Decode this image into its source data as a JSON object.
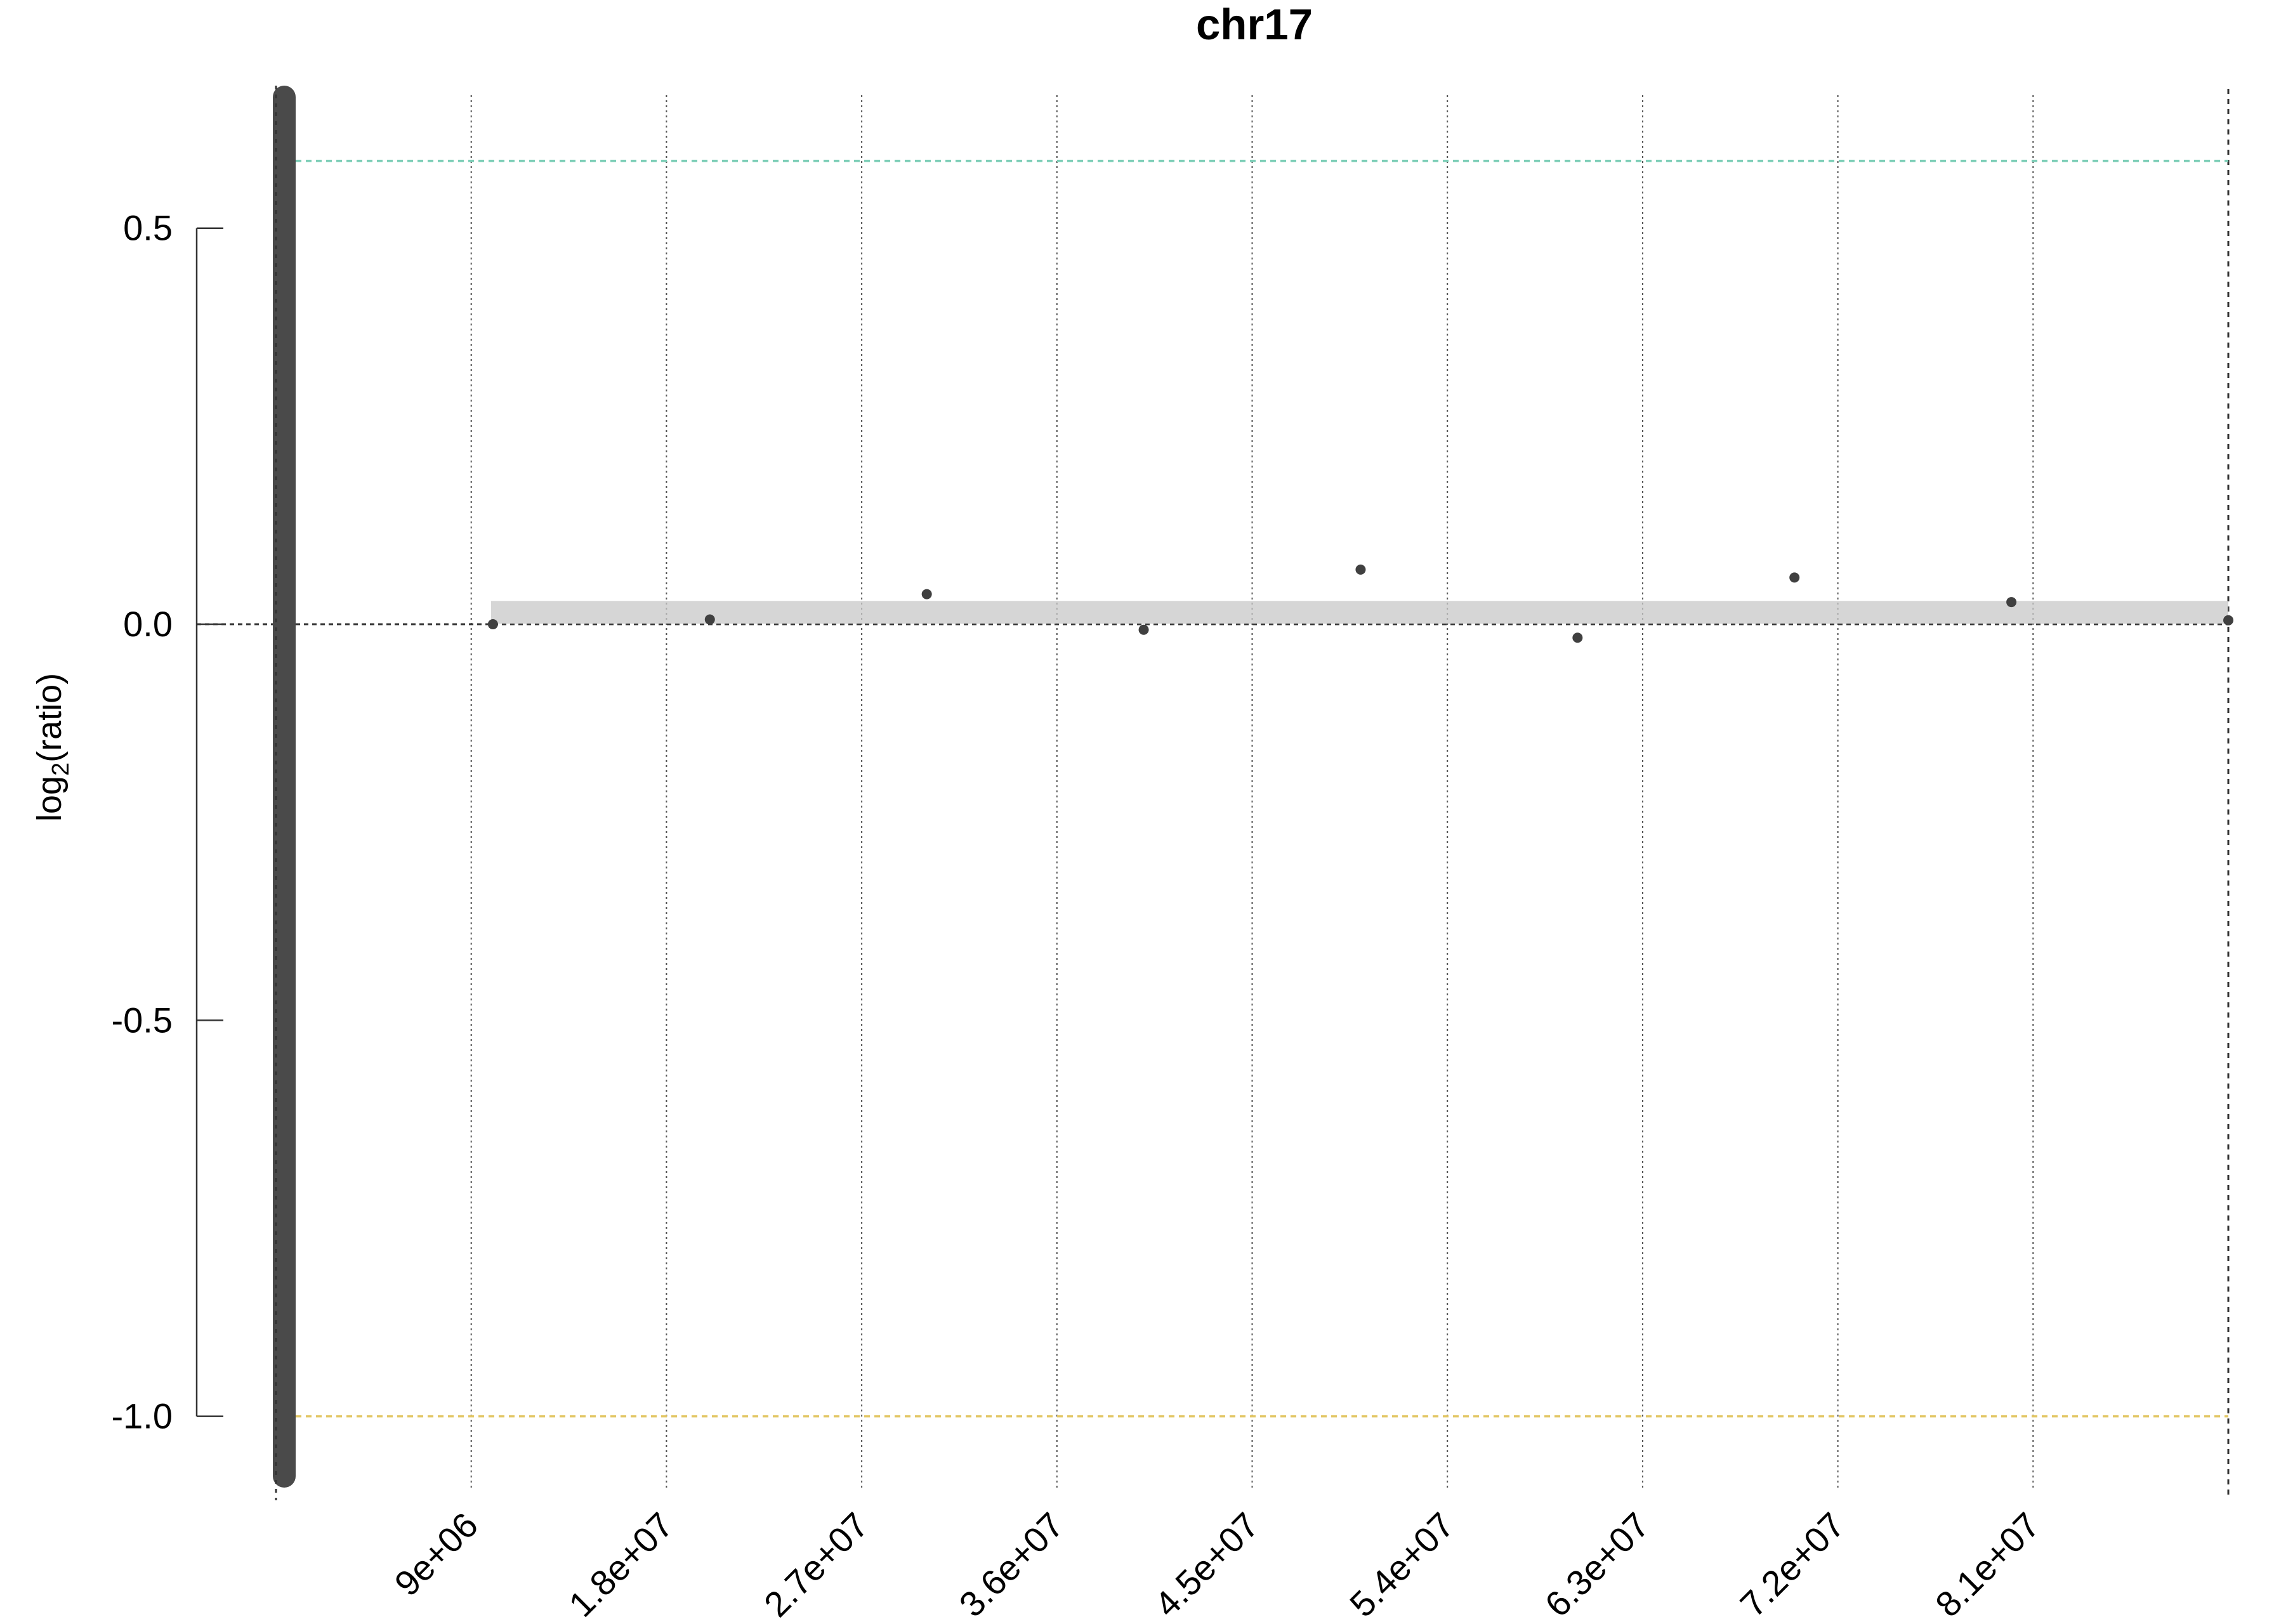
{
  "chart_data": {
    "type": "scatter",
    "title": "chr17",
    "ylabel": {
      "base": "log",
      "subscript": "2",
      "rest": "(ratio)"
    },
    "xlabel": "",
    "xlim": [
      0,
      90000000
    ],
    "ylim": [
      -1.09,
      0.68
    ],
    "x_ticks": [
      {
        "value": 9000000,
        "label": "9e+06"
      },
      {
        "value": 18000000,
        "label": "1.8e+07"
      },
      {
        "value": 27000000,
        "label": "2.7e+07"
      },
      {
        "value": 36000000,
        "label": "3.6e+07"
      },
      {
        "value": 45000000,
        "label": "4.5e+07"
      },
      {
        "value": 54000000,
        "label": "5.4e+07"
      },
      {
        "value": 63000000,
        "label": "6.3e+07"
      },
      {
        "value": 72000000,
        "label": "7.2e+07"
      },
      {
        "value": 81000000,
        "label": "8.1e+07"
      }
    ],
    "y_ticks": [
      {
        "value": 0.5,
        "label": "0.5"
      },
      {
        "value": 0.0,
        "label": "0.0"
      },
      {
        "value": -0.5,
        "label": "-0.5"
      },
      {
        "value": -1.0,
        "label": "-1.0"
      }
    ],
    "reference_lines": [
      {
        "y": 0.585,
        "color": "#7ecfb8",
        "style": "dashed"
      },
      {
        "y": 0.0,
        "color": "#333333",
        "style": "dashed"
      },
      {
        "y": -1.0,
        "color": "#e3c766",
        "style": "dashed"
      }
    ],
    "segment": {
      "x_start": 10000000,
      "x_end": 90000000,
      "y": 0.015,
      "color": "#c8c8c8"
    },
    "points": [
      {
        "x": 10000000,
        "y": 0.0
      },
      {
        "x": 20000000,
        "y": 0.006
      },
      {
        "x": 30000000,
        "y": 0.038
      },
      {
        "x": 40000000,
        "y": -0.007
      },
      {
        "x": 50000000,
        "y": 0.069
      },
      {
        "x": 60000000,
        "y": -0.017
      },
      {
        "x": 70000000,
        "y": 0.059
      },
      {
        "x": 80000000,
        "y": 0.028
      },
      {
        "x": 90000000,
        "GAP": null,
        "y": 0.005
      }
    ],
    "point_color": "#404040",
    "grid": "vertical-dotted"
  }
}
